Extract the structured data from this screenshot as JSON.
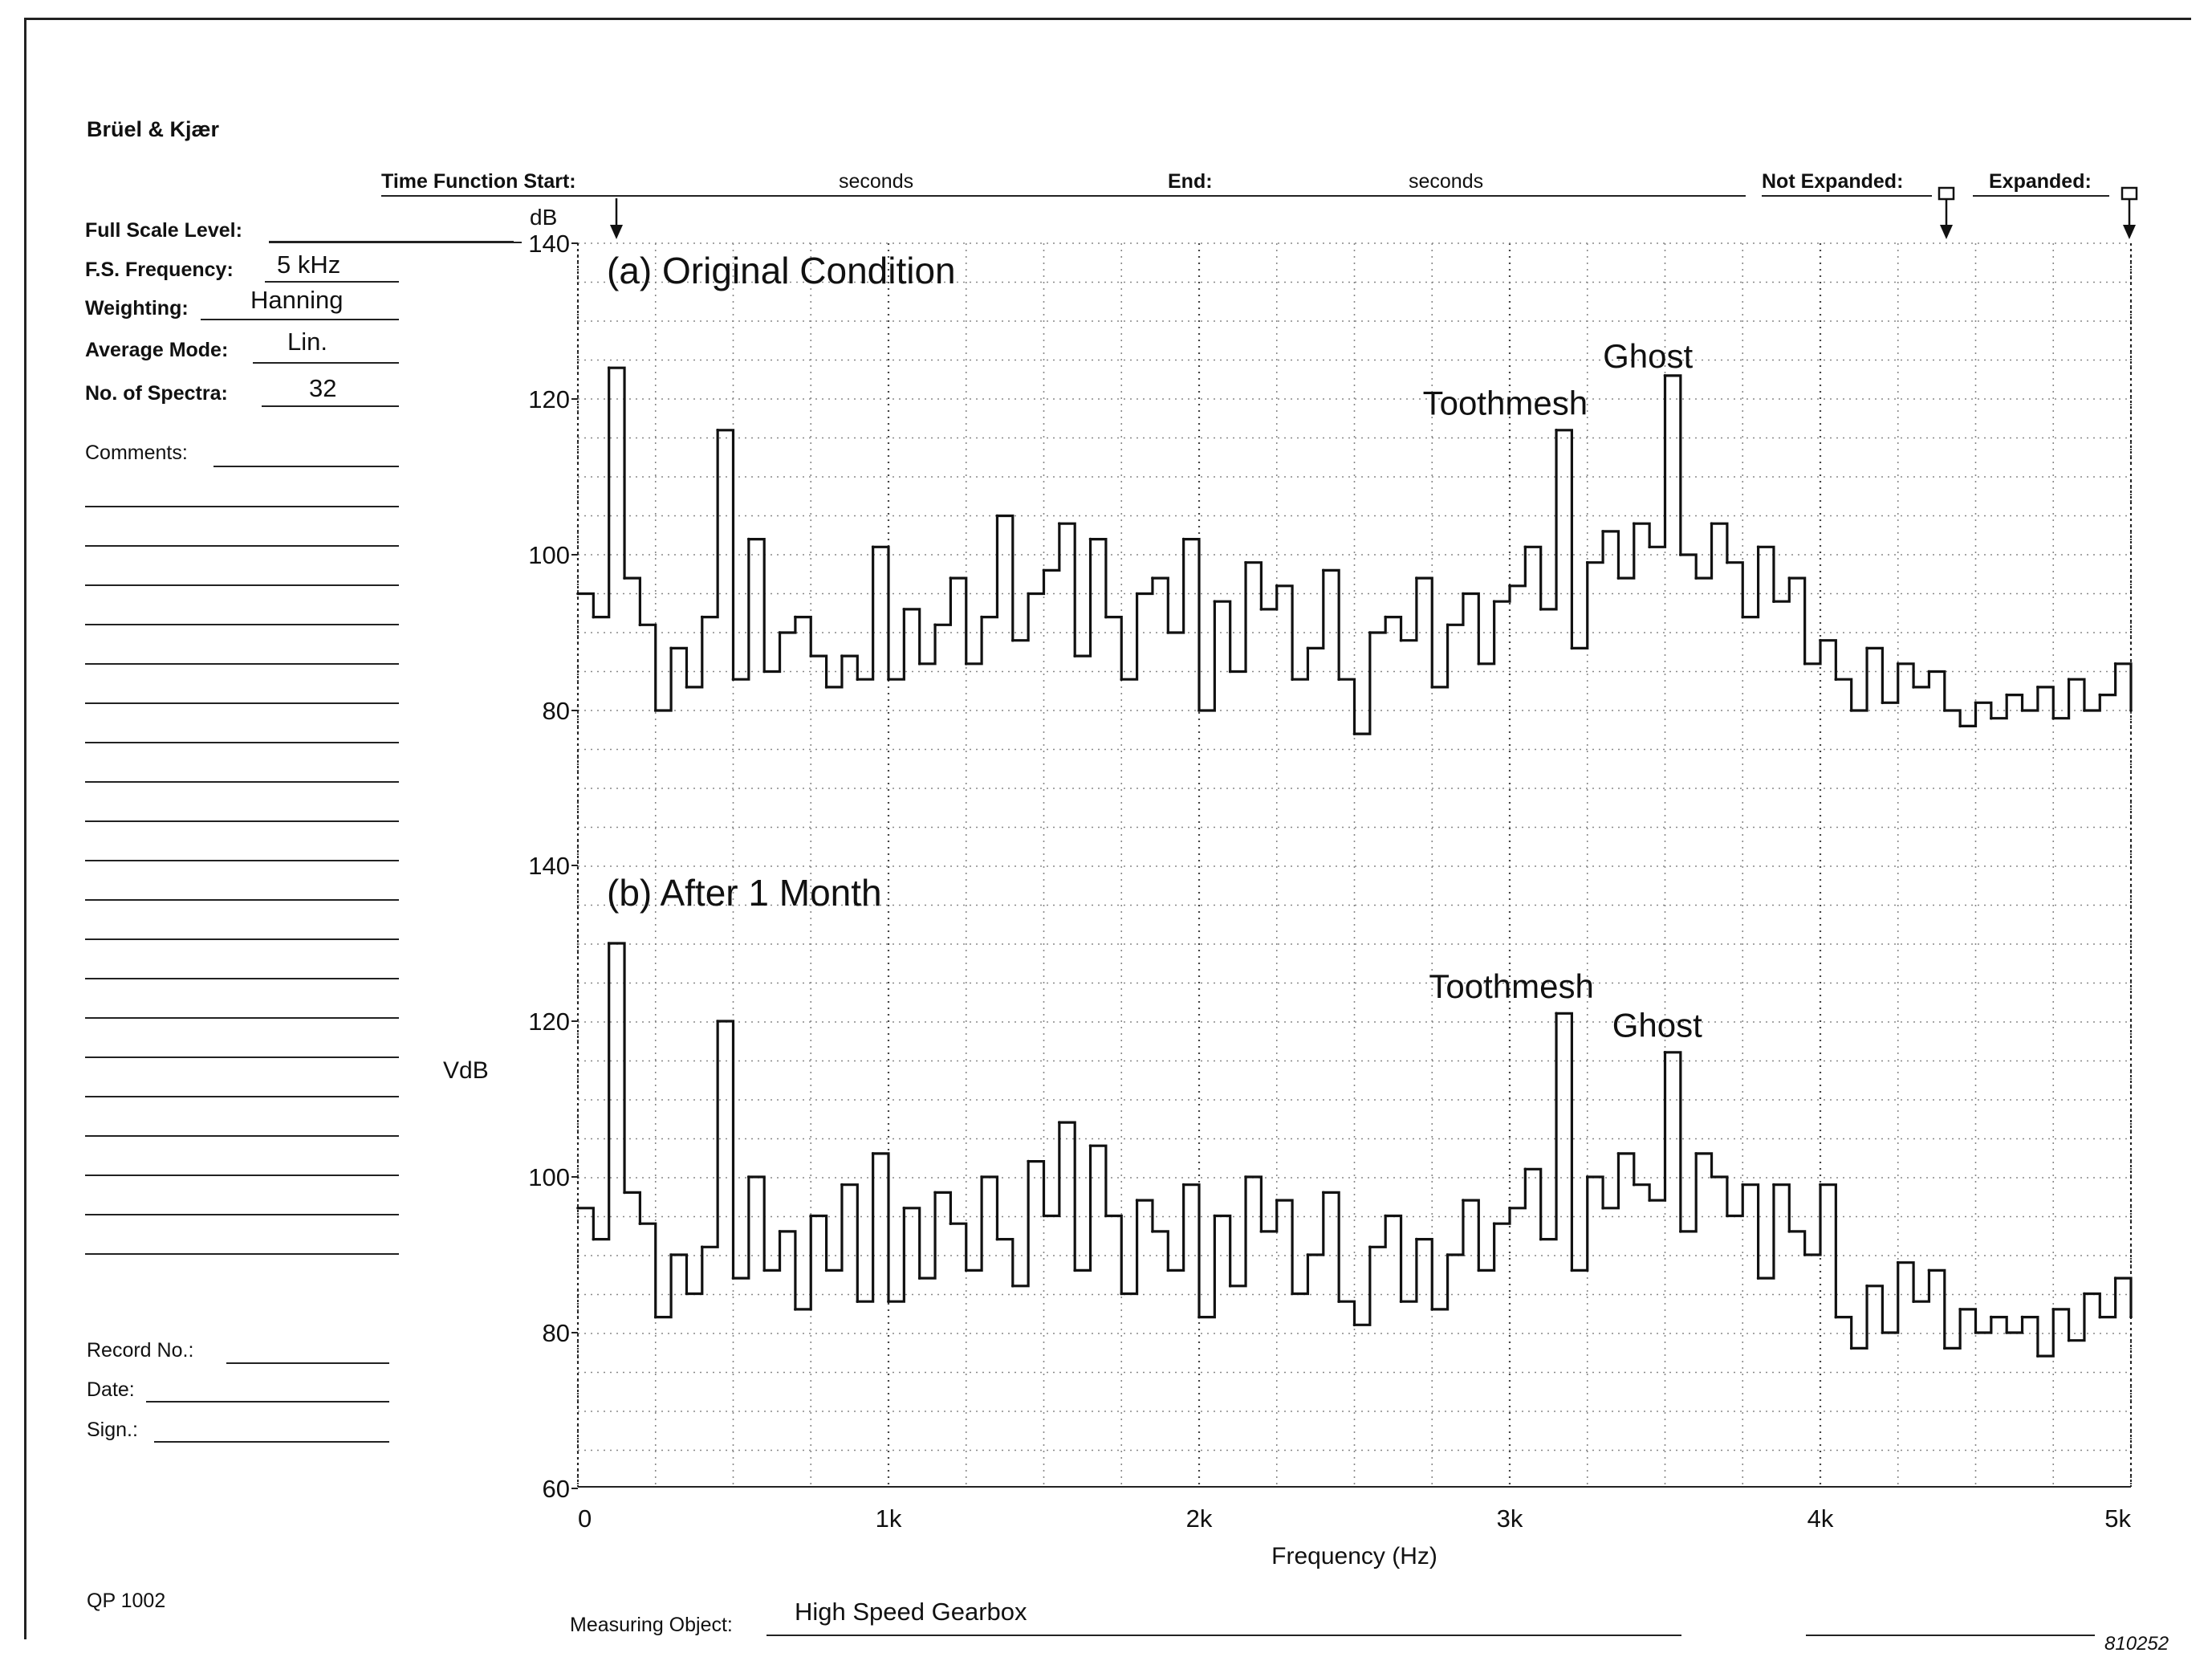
{
  "form": {
    "brand": "Brüel & Kjær",
    "time_function_start_label": "Time Function Start:",
    "seconds_1": "seconds",
    "end_label": "End:",
    "seconds_2": "seconds",
    "not_expanded_label": "Not Expanded:",
    "expanded_label": "Expanded:",
    "full_scale_level_label": "Full Scale Level:",
    "fs_frequency_label": "F.S. Frequency:",
    "fs_frequency_value": "5 kHz",
    "weighting_label": "Weighting:",
    "weighting_value": "Hanning",
    "average_mode_label": "Average Mode:",
    "average_mode_value": "Lin.",
    "no_of_spectra_label": "No. of Spectra:",
    "no_of_spectra_value": "32",
    "comments_label": "Comments:",
    "record_no_label": "Record No.:",
    "date_label": "Date:",
    "sign_label": "Sign.:",
    "form_code": "QP 1002",
    "measuring_object_label": "Measuring Object:",
    "measuring_object_value": "High Speed Gearbox",
    "figure_number": "810252"
  },
  "chart_data": {
    "type": "line",
    "db_unit_label": "dB",
    "ylabel": "VdB",
    "xlabel": "Frequency (Hz)",
    "xlim": [
      0,
      5000
    ],
    "ylim": [
      60,
      140
    ],
    "x_ticks": [
      0,
      1000,
      2000,
      3000,
      4000,
      5000
    ],
    "x_tick_labels": [
      "0",
      "1k",
      "2k",
      "3k",
      "4k",
      "5k"
    ],
    "panels": [
      {
        "title": "(a) Original Condition",
        "y_tick_labels": [
          "140",
          "120",
          "100",
          "80"
        ],
        "y_ticks": [
          140,
          120,
          100,
          80
        ],
        "annotations": [
          {
            "text": "Ghost",
            "x": 3300,
            "y": 124
          },
          {
            "text": "Toothmesh",
            "x": 2720,
            "y": 118
          }
        ],
        "series": [
          {
            "x": [
              0,
              50,
              100,
              150,
              200,
              250,
              300,
              350,
              400,
              450,
              500,
              550,
              600,
              650,
              700,
              750,
              800,
              850,
              900,
              950,
              1000,
              1050,
              1100,
              1150,
              1200,
              1250,
              1300,
              1350,
              1400,
              1450,
              1500,
              1550,
              1600,
              1650,
              1700,
              1750,
              1800,
              1850,
              1900,
              1950,
              2000,
              2050,
              2100,
              2150,
              2200,
              2250,
              2300,
              2350,
              2400,
              2450,
              2500,
              2550,
              2600,
              2650,
              2700,
              2750,
              2800,
              2850,
              2900,
              2950,
              3000,
              3050,
              3100,
              3150,
              3200,
              3250,
              3300,
              3350,
              3400,
              3450,
              3500,
              3550,
              3600,
              3650,
              3700,
              3750,
              3800,
              3850,
              3900,
              3950,
              4000,
              4050,
              4100,
              4150,
              4200,
              4250,
              4300,
              4350,
              4400,
              4450,
              4500,
              4550,
              4600,
              4650,
              4700,
              4750,
              4800,
              4850,
              4900,
              4950,
              5000
            ],
            "values": [
              95,
              92,
              124,
              97,
              91,
              80,
              88,
              83,
              92,
              116,
              84,
              102,
              85,
              90,
              92,
              87,
              83,
              87,
              84,
              101,
              84,
              93,
              86,
              91,
              97,
              86,
              92,
              105,
              89,
              95,
              98,
              104,
              87,
              102,
              92,
              84,
              95,
              97,
              90,
              102,
              80,
              94,
              85,
              99,
              93,
              96,
              84,
              88,
              98,
              84,
              77,
              90,
              92,
              89,
              97,
              83,
              91,
              95,
              86,
              94,
              96,
              101,
              93,
              116,
              88,
              99,
              103,
              97,
              104,
              101,
              123,
              100,
              97,
              104,
              99,
              92,
              101,
              94,
              97,
              86,
              89,
              84,
              80,
              88,
              81,
              86,
              83,
              85,
              80,
              78,
              81,
              79,
              82,
              80,
              83,
              79,
              84,
              80,
              82,
              86,
              80
            ]
          }
        ]
      },
      {
        "title": "(b) After 1 Month",
        "y_tick_labels": [
          "140",
          "120",
          "100",
          "80",
          "60"
        ],
        "y_ticks": [
          140,
          120,
          100,
          80,
          60
        ],
        "annotations": [
          {
            "text": "Toothmesh",
            "x": 2740,
            "y": 123
          },
          {
            "text": "Ghost",
            "x": 3330,
            "y": 118
          }
        ],
        "series": [
          {
            "x": [
              0,
              50,
              100,
              150,
              200,
              250,
              300,
              350,
              400,
              450,
              500,
              550,
              600,
              650,
              700,
              750,
              800,
              850,
              900,
              950,
              1000,
              1050,
              1100,
              1150,
              1200,
              1250,
              1300,
              1350,
              1400,
              1450,
              1500,
              1550,
              1600,
              1650,
              1700,
              1750,
              1800,
              1850,
              1900,
              1950,
              2000,
              2050,
              2100,
              2150,
              2200,
              2250,
              2300,
              2350,
              2400,
              2450,
              2500,
              2550,
              2600,
              2650,
              2700,
              2750,
              2800,
              2850,
              2900,
              2950,
              3000,
              3050,
              3100,
              3150,
              3200,
              3250,
              3300,
              3350,
              3400,
              3450,
              3500,
              3550,
              3600,
              3650,
              3700,
              3750,
              3800,
              3850,
              3900,
              3950,
              4000,
              4050,
              4100,
              4150,
              4200,
              4250,
              4300,
              4350,
              4400,
              4450,
              4500,
              4550,
              4600,
              4650,
              4700,
              4750,
              4800,
              4850,
              4900,
              4950,
              5000
            ],
            "values": [
              96,
              92,
              130,
              98,
              94,
              82,
              90,
              85,
              91,
              120,
              87,
              100,
              88,
              93,
              83,
              95,
              88,
              99,
              84,
              103,
              84,
              96,
              87,
              98,
              94,
              88,
              100,
              92,
              86,
              102,
              95,
              107,
              88,
              104,
              95,
              85,
              97,
              93,
              88,
              99,
              82,
              95,
              86,
              100,
              93,
              97,
              85,
              90,
              98,
              84,
              81,
              91,
              95,
              84,
              92,
              83,
              90,
              97,
              88,
              94,
              96,
              101,
              92,
              121,
              88,
              100,
              96,
              103,
              99,
              97,
              116,
              93,
              103,
              100,
              95,
              99,
              87,
              99,
              93,
              90,
              99,
              82,
              78,
              86,
              80,
              89,
              84,
              88,
              78,
              83,
              80,
              82,
              80,
              82,
              77,
              83,
              79,
              85,
              82,
              87,
              82
            ]
          }
        ]
      }
    ]
  }
}
